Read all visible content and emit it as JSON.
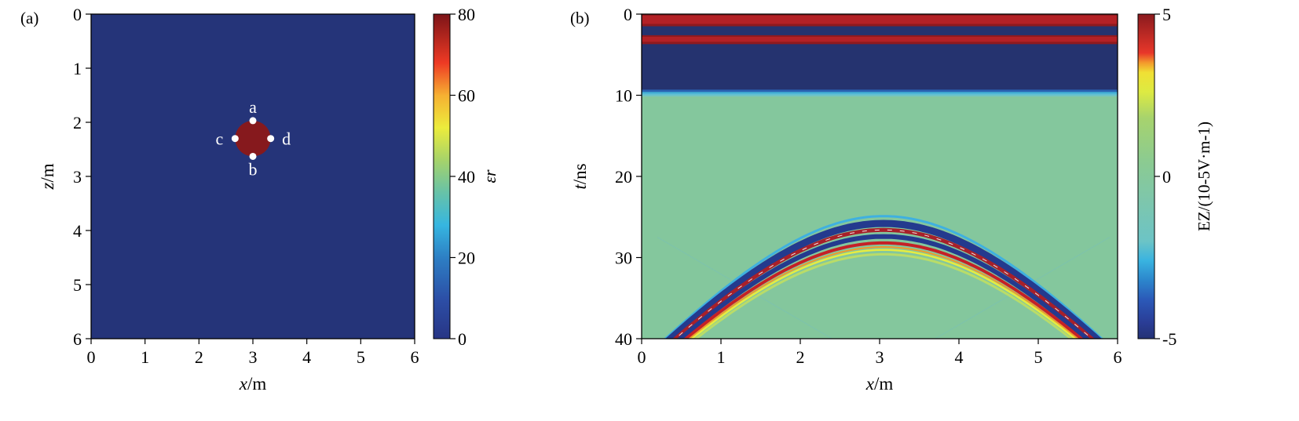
{
  "chart_data": [
    {
      "type": "heatmap",
      "panel_label": "(a)",
      "xlabel_var": "x",
      "xlabel_unit": "/m",
      "ylabel_var": "z",
      "ylabel_unit": "/m",
      "xlim": [
        0,
        6
      ],
      "ylim": [
        0,
        6
      ],
      "y_inverted": true,
      "x_ticks": [
        0,
        1,
        2,
        3,
        4,
        5,
        6
      ],
      "y_ticks": [
        0,
        1,
        2,
        3,
        4,
        5,
        6
      ],
      "background_value": 1,
      "object": {
        "shape": "circle",
        "center_x": 3,
        "center_z": 2.3,
        "radius": 0.33,
        "value": 80
      },
      "points": [
        {
          "label": "a",
          "x": 3.0,
          "z": 1.97
        },
        {
          "label": "b",
          "x": 3.0,
          "z": 2.63
        },
        {
          "label": "c",
          "x": 2.67,
          "z": 2.3
        },
        {
          "label": "d",
          "x": 3.33,
          "z": 2.3
        }
      ],
      "colorbar": {
        "label": "εr",
        "min": 0,
        "max": 80,
        "ticks": [
          0,
          20,
          40,
          60,
          80
        ]
      },
      "grid": false
    },
    {
      "type": "heatmap",
      "panel_label": "(b)",
      "xlabel_var": "x",
      "xlabel_unit": "/m",
      "ylabel_var": "t",
      "ylabel_unit": "/ns",
      "xlim": [
        0,
        6
      ],
      "ylim": [
        0,
        40
      ],
      "y_inverted": true,
      "x_ticks": [
        0,
        1,
        2,
        3,
        4,
        5,
        6
      ],
      "y_ticks": [
        0,
        10,
        20,
        30,
        40
      ],
      "direct_wave_bands_ns": [
        [
          0,
          1.5
        ],
        [
          2.6,
          3.7
        ]
      ],
      "direct_wave_dark_end_ns": 9.5,
      "hyperbola": {
        "apex_x": 3.05,
        "apex_t": 25.5,
        "t_at_x_0_4": 39.5
      },
      "colorbar": {
        "label": "EZ/(10-5V·m-1)",
        "min": -5,
        "max": 5,
        "ticks": [
          "-5",
          "0",
          "5"
        ]
      },
      "grid": false
    }
  ]
}
